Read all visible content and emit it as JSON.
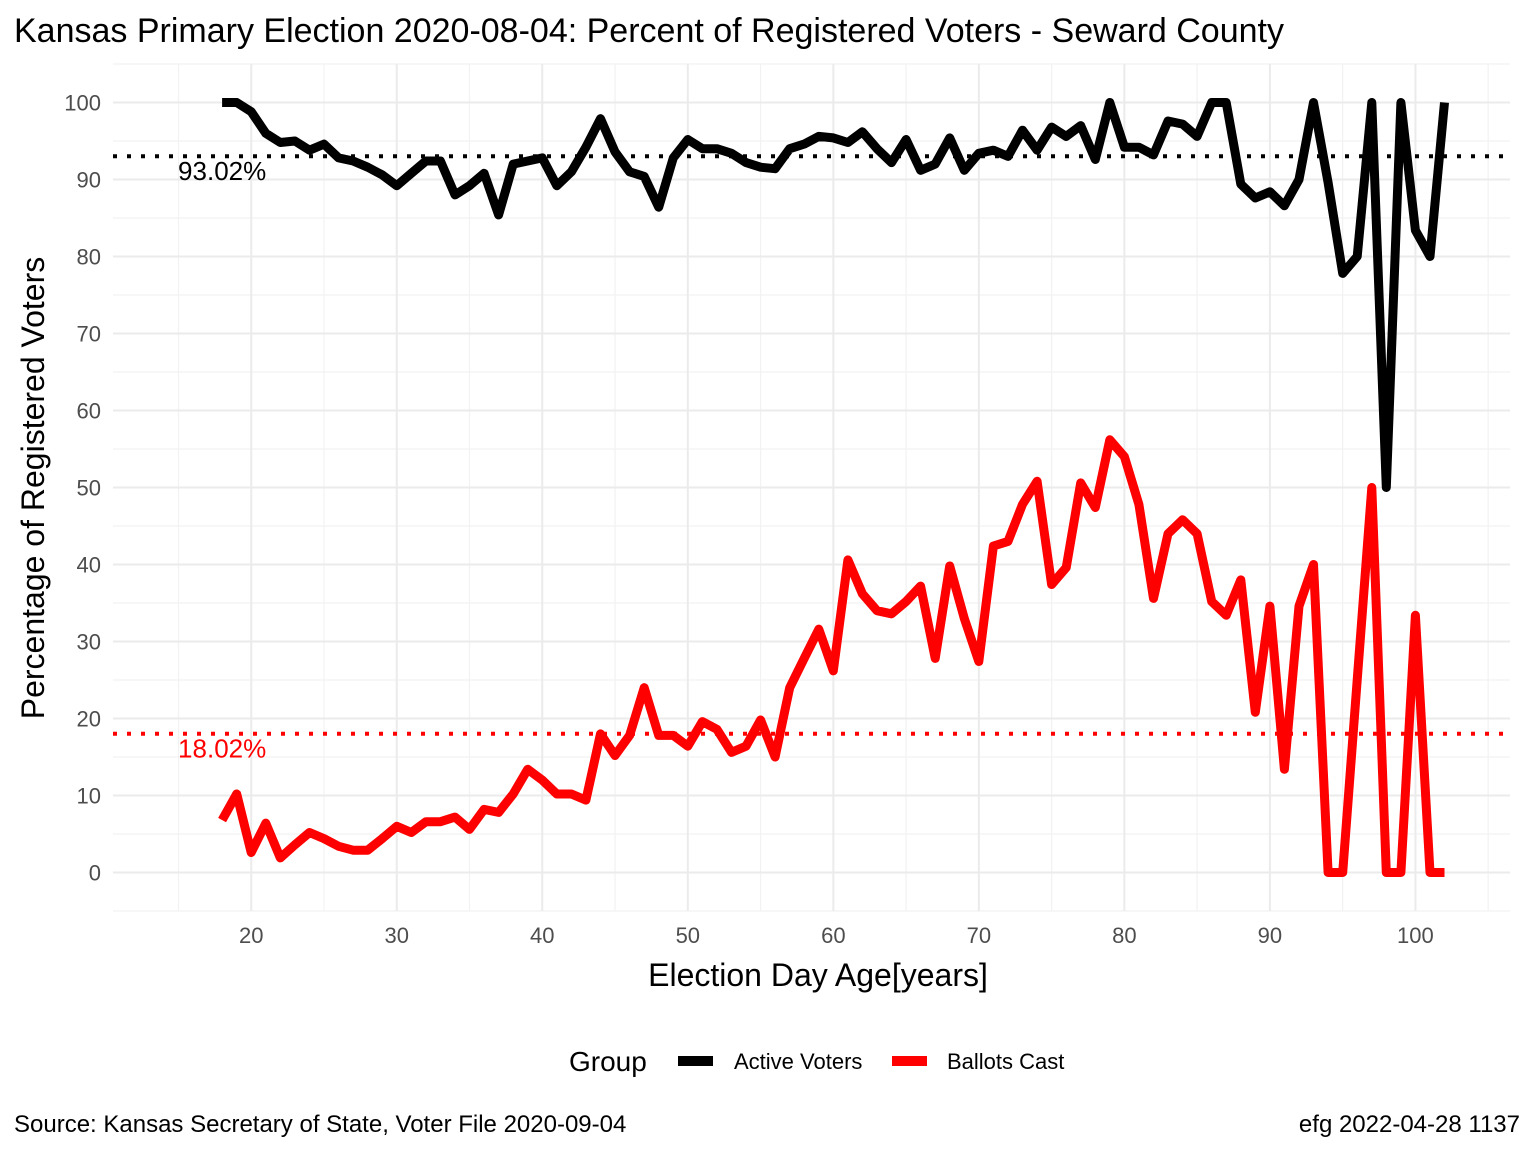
{
  "chart_data": {
    "type": "line",
    "title": "Kansas Primary Election 2020-08-04:  Percent of Registered Voters - Seward County",
    "xlabel": "Election Day Age[years]",
    "ylabel": "Percentage of Registered Voters",
    "xlim": [
      10.5,
      106.5
    ],
    "ylim": [
      -5,
      105
    ],
    "x_ticks": [
      20,
      30,
      40,
      50,
      60,
      70,
      80,
      90,
      100
    ],
    "y_ticks": [
      0,
      10,
      20,
      30,
      40,
      50,
      60,
      70,
      80,
      90,
      100
    ],
    "grid": true,
    "legend": {
      "title": "Group",
      "position": "bottom"
    },
    "series": [
      {
        "name": "Active Voters",
        "color": "#000000",
        "x": [
          18,
          19,
          20,
          21,
          22,
          23,
          24,
          25,
          26,
          27,
          28,
          29,
          30,
          31,
          32,
          33,
          34,
          35,
          36,
          37,
          38,
          39,
          40,
          41,
          42,
          43,
          44,
          45,
          46,
          47,
          48,
          49,
          50,
          51,
          52,
          53,
          54,
          55,
          56,
          57,
          58,
          59,
          60,
          61,
          62,
          63,
          64,
          65,
          66,
          67,
          68,
          69,
          70,
          71,
          72,
          73,
          74,
          75,
          76,
          77,
          78,
          79,
          80,
          81,
          82,
          83,
          84,
          85,
          86,
          87,
          88,
          89,
          90,
          91,
          92,
          93,
          94,
          95,
          96,
          97,
          98,
          99,
          100,
          101,
          102
        ],
        "y": [
          100,
          100,
          98.8,
          96,
          94.8,
          95,
          93.8,
          94.6,
          92.8,
          92.4,
          91.6,
          90.6,
          89.2,
          90.8,
          92.4,
          92.4,
          88,
          89.2,
          90.8,
          85.4,
          92,
          92.4,
          92.8,
          89.2,
          91,
          94.2,
          97.9,
          93.6,
          91,
          90.4,
          86.4,
          92.8,
          95.2,
          94,
          94,
          93.4,
          92.2,
          91.6,
          91.4,
          94,
          94.6,
          95.6,
          95.4,
          94.8,
          96.2,
          94,
          92.2,
          95.2,
          91.2,
          92,
          95.4,
          91.2,
          93.4,
          93.8,
          93,
          96.4,
          93.8,
          96.8,
          95.6,
          97,
          92.6,
          100,
          94.2,
          94.2,
          93.2,
          97.6,
          97.2,
          95.6,
          100,
          100,
          89.4,
          87.6,
          88.4,
          86.6,
          90,
          100,
          89.6,
          77.8,
          80,
          100,
          50,
          100,
          83.4,
          80,
          100
        ]
      },
      {
        "name": "Ballots Cast",
        "color": "#ff0000",
        "x": [
          18,
          19,
          20,
          21,
          22,
          23,
          24,
          25,
          26,
          27,
          28,
          29,
          30,
          31,
          32,
          33,
          34,
          35,
          36,
          37,
          38,
          39,
          40,
          41,
          42,
          43,
          44,
          45,
          46,
          47,
          48,
          49,
          50,
          51,
          52,
          53,
          54,
          55,
          56,
          57,
          58,
          59,
          60,
          61,
          62,
          63,
          64,
          65,
          66,
          67,
          68,
          69,
          70,
          71,
          72,
          73,
          74,
          75,
          76,
          77,
          78,
          79,
          80,
          81,
          82,
          83,
          84,
          85,
          86,
          87,
          88,
          89,
          90,
          91,
          92,
          93,
          94,
          95,
          96,
          97,
          98,
          99,
          100,
          101,
          102
        ],
        "y": [
          6.8,
          10.2,
          2.6,
          6.4,
          1.9,
          3.6,
          5.2,
          4.4,
          3.4,
          2.9,
          2.9,
          4.4,
          6,
          5.2,
          6.6,
          6.6,
          7.2,
          5.6,
          8.2,
          7.8,
          10.2,
          13.4,
          12,
          10.2,
          10.2,
          9.4,
          18,
          15.2,
          17.8,
          24,
          17.8,
          17.8,
          16.4,
          19.6,
          18.6,
          15.6,
          16.4,
          19.8,
          15,
          24,
          27.8,
          31.6,
          26.2,
          40.6,
          36.2,
          34,
          33.6,
          35.2,
          37.2,
          27.8,
          39.8,
          33,
          27.4,
          42.4,
          43,
          47.8,
          50.8,
          37.4,
          39.6,
          50.6,
          47.4,
          56.2,
          54,
          47.8,
          35.6,
          44,
          45.8,
          44,
          35.2,
          33.4,
          38,
          20.8,
          34.6,
          13.4,
          34.6,
          40,
          0,
          0,
          25,
          50,
          0,
          0,
          33.4,
          0,
          0
        ]
      }
    ],
    "reference_lines": [
      {
        "label": "93.02%",
        "value": 93.02,
        "color": "#000000"
      },
      {
        "label": "18.02%",
        "value": 18.02,
        "color": "#ff0000"
      }
    ]
  },
  "caption": {
    "left": "Source:  Kansas Secretary of State, Voter File  2020-09-04",
    "right": "efg 2022-04-28 1137"
  }
}
